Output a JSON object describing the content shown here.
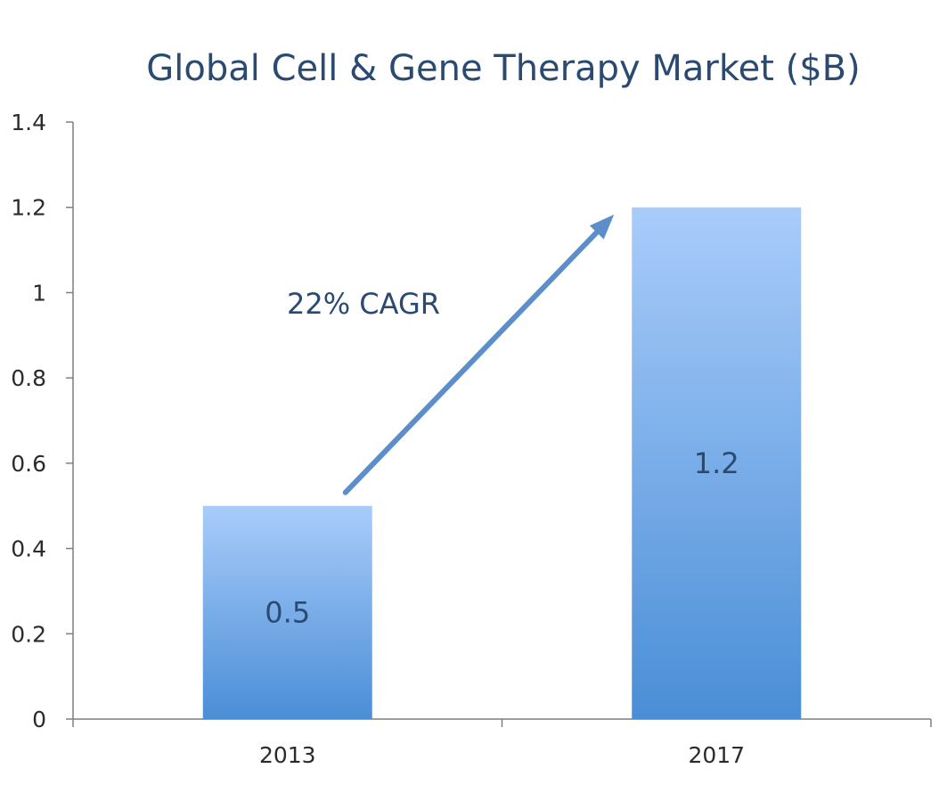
{
  "chart_data": {
    "type": "bar",
    "title": "Global Cell & Gene Therapy Market ($B)",
    "categories": [
      "2013",
      "2017"
    ],
    "values": [
      0.5,
      1.2
    ],
    "data_labels": [
      "0.5",
      "1.2"
    ],
    "ylim": [
      0,
      1.4
    ],
    "yticks": [
      0,
      0.2,
      0.4,
      0.6,
      0.8,
      1,
      1.2,
      1.4
    ],
    "ytick_labels": [
      "0",
      "0.2",
      "0.4",
      "0.6",
      "0.8",
      "1",
      "1.2",
      "1.4"
    ],
    "xlabel": "",
    "ylabel": "",
    "grid": false,
    "legend": "none",
    "annotation": {
      "text": "22% CAGR",
      "arrow": {
        "from": "2013",
        "to": "2017"
      }
    },
    "colors": {
      "bar_top": "#a9ccfa",
      "bar_bottom": "#4a8ed6",
      "arrow": "#5c8fc9",
      "title": "#2b4a72",
      "axis": "#7f7f7f"
    }
  }
}
